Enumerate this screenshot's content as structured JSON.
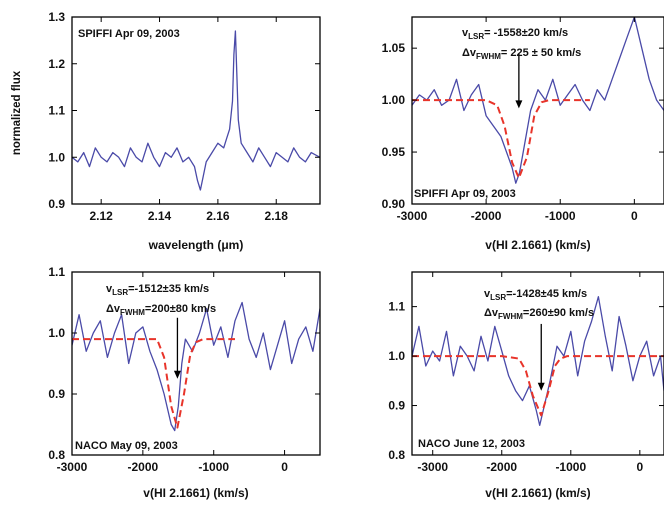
{
  "chart_data": [
    {
      "type": "line",
      "label": "SPIFFI Apr 09, 2003",
      "xlabel": "wavelength (μm)",
      "ylabel": "normalized flux",
      "xlim": [
        2.11,
        2.195
      ],
      "ylim": [
        0.9,
        1.3
      ],
      "xticks": [
        2.12,
        2.14,
        2.16,
        2.18
      ],
      "yticks": [
        0.9,
        1.0,
        1.1,
        1.2,
        1.3
      ],
      "xtick_labels": [
        "2.12",
        "2.14",
        "2.16",
        "2.18"
      ],
      "ytick_labels": [
        "0.9",
        "1.0",
        "1.1",
        "1.2",
        "1.3"
      ],
      "series": [
        {
          "color": "#4a4aa8",
          "x": [
            2.11,
            2.112,
            2.114,
            2.116,
            2.118,
            2.12,
            2.122,
            2.124,
            2.126,
            2.128,
            2.13,
            2.132,
            2.134,
            2.136,
            2.138,
            2.14,
            2.142,
            2.144,
            2.146,
            2.148,
            2.15,
            2.152,
            2.153,
            2.154,
            2.155,
            2.156,
            2.158,
            2.16,
            2.162,
            2.163,
            2.164,
            2.165,
            2.1655,
            2.166,
            2.1665,
            2.167,
            2.168,
            2.17,
            2.172,
            2.174,
            2.176,
            2.178,
            2.18,
            2.182,
            2.184,
            2.186,
            2.188,
            2.19,
            2.192,
            2.195
          ],
          "y": [
            1.0,
            0.99,
            1.01,
            0.98,
            1.02,
            1.0,
            0.99,
            1.01,
            1.0,
            0.98,
            1.02,
            1.0,
            0.99,
            1.03,
            1.0,
            0.98,
            1.01,
            1.0,
            1.02,
            0.99,
            1.0,
            0.98,
            0.95,
            0.93,
            0.96,
            0.99,
            1.01,
            1.03,
            1.02,
            1.04,
            1.06,
            1.12,
            1.22,
            1.27,
            1.18,
            1.08,
            1.03,
            1.01,
            0.99,
            1.02,
            1.0,
            0.98,
            1.01,
            1.0,
            0.99,
            1.02,
            1.0,
            0.99,
            1.01,
            1.0
          ]
        }
      ]
    },
    {
      "type": "line",
      "label": "SPIFFI Apr 09, 2003",
      "xlabel": "v(HI 2.1661) (km/s)",
      "xlim": [
        -3000,
        400
      ],
      "ylim": [
        0.9,
        1.08
      ],
      "xticks": [
        -3000,
        -2000,
        -1000,
        0
      ],
      "yticks": [
        0.9,
        0.95,
        1.0,
        1.05
      ],
      "xtick_labels": [
        "-3000",
        "-2000",
        "-1000",
        "0"
      ],
      "ytick_labels": [
        "0.90",
        "0.95",
        "1.00",
        "1.05"
      ],
      "annotations": {
        "v_lsr": {
          "prefix": "v",
          "sub": "LSR",
          "value": "= -1558±20 km/s"
        },
        "dv_fwhm": {
          "prefix": "Δv",
          "sub": "FWHM",
          "value": "= 225 ± 50 km/s"
        }
      },
      "arrow_x": -1558,
      "arrow_y": [
        1.045,
        0.992
      ],
      "series": [
        {
          "color": "#4a4aa8",
          "x": [
            -3000,
            -2900,
            -2800,
            -2700,
            -2600,
            -2500,
            -2400,
            -2300,
            -2200,
            -2100,
            -2000,
            -1900,
            -1800,
            -1700,
            -1650,
            -1600,
            -1550,
            -1500,
            -1450,
            -1400,
            -1300,
            -1200,
            -1100,
            -1000,
            -900,
            -800,
            -700,
            -600,
            -500,
            -400,
            -300,
            -200,
            -100,
            0,
            100,
            200,
            300,
            400
          ],
          "y": [
            0.995,
            1.005,
            1.0,
            1.01,
            0.995,
            1.0,
            1.02,
            0.99,
            1.005,
            1.015,
            0.985,
            0.975,
            0.965,
            0.945,
            0.935,
            0.92,
            0.93,
            0.95,
            0.97,
            0.99,
            1.01,
            1.0,
            1.02,
            0.995,
            1.005,
            1.015,
            1.0,
            0.99,
            1.01,
            1.0,
            1.02,
            1.04,
            1.06,
            1.08,
            1.05,
            1.02,
            1.0,
            0.99
          ]
        },
        {
          "color": "#e8342a",
          "dashed": true,
          "x": [
            -3000,
            -2400,
            -2000,
            -1850,
            -1750,
            -1650,
            -1558,
            -1450,
            -1350,
            -1250,
            -1150,
            -600
          ],
          "y": [
            1.0,
            1.0,
            1.0,
            0.995,
            0.975,
            0.94,
            0.925,
            0.945,
            0.985,
            0.998,
            1.0,
            1.0
          ]
        }
      ]
    },
    {
      "type": "line",
      "label": "NACO May 09, 2003",
      "xlabel": "v(HI 2.1661)  (km/s)",
      "xlim": [
        -3000,
        500
      ],
      "ylim": [
        0.8,
        1.1
      ],
      "xticks": [
        -3000,
        -2000,
        -1000,
        0
      ],
      "yticks": [
        0.8,
        0.9,
        1.0,
        1.1
      ],
      "xtick_labels": [
        "-3000",
        "-2000",
        "-1000",
        "0"
      ],
      "ytick_labels": [
        "0.8",
        "0.9",
        "1.0",
        "1.1"
      ],
      "annotations": {
        "v_lsr": {
          "prefix": "v",
          "sub": "LSR",
          "value": "=-1512±35 km/s"
        },
        "dv_fwhm": {
          "prefix": "Δv",
          "sub": "FWHM",
          "value": "=200±80 km/s"
        }
      },
      "arrow_x": -1512,
      "arrow_y": [
        1.025,
        0.925
      ],
      "series": [
        {
          "color": "#4a4aa8",
          "x": [
            -3000,
            -2900,
            -2800,
            -2700,
            -2600,
            -2500,
            -2400,
            -2300,
            -2200,
            -2100,
            -2000,
            -1900,
            -1800,
            -1700,
            -1600,
            -1550,
            -1500,
            -1450,
            -1400,
            -1300,
            -1200,
            -1100,
            -1000,
            -900,
            -800,
            -700,
            -600,
            -500,
            -400,
            -300,
            -200,
            -100,
            0,
            100,
            200,
            300,
            400,
            500
          ],
          "y": [
            0.98,
            1.03,
            0.97,
            1.0,
            1.02,
            0.96,
            1.0,
            1.03,
            0.95,
            1.0,
            1.01,
            0.97,
            0.94,
            0.9,
            0.85,
            0.84,
            0.88,
            0.95,
            0.99,
            0.97,
            1.0,
            1.04,
            0.98,
            1.01,
            0.96,
            1.02,
            1.05,
            0.99,
            0.96,
            1.0,
            0.94,
            0.98,
            1.02,
            0.95,
            0.99,
            1.01,
            0.97,
            1.04
          ]
        },
        {
          "color": "#e8342a",
          "dashed": true,
          "x": [
            -3000,
            -2200,
            -1800,
            -1700,
            -1600,
            -1512,
            -1420,
            -1330,
            -1250,
            -1150,
            -700
          ],
          "y": [
            0.99,
            0.99,
            0.99,
            0.96,
            0.88,
            0.845,
            0.9,
            0.965,
            0.985,
            0.99,
            0.99
          ]
        }
      ]
    },
    {
      "type": "line",
      "label": "NACO June 12, 2003",
      "xlabel": "v(HI 2.1661)  (km/s)",
      "xlim": [
        -3300,
        350
      ],
      "ylim": [
        0.8,
        1.17
      ],
      "xticks": [
        -3000,
        -2000,
        -1000,
        0
      ],
      "yticks": [
        0.8,
        0.9,
        1.0,
        1.1
      ],
      "xtick_labels": [
        "-3000",
        "-2000",
        "-1000",
        "0"
      ],
      "ytick_labels": [
        "0.8",
        "0.9",
        "1.0",
        "1.1"
      ],
      "annotations": {
        "v_lsr": {
          "prefix": "v",
          "sub": "LSR",
          "value": "=-1428±45 km/s"
        },
        "dv_fwhm": {
          "prefix": "Δv",
          "sub": "FWHM",
          "value": "=260±90 km/s"
        }
      },
      "arrow_x": -1428,
      "arrow_y": [
        1.065,
        0.93
      ],
      "series": [
        {
          "color": "#4a4aa8",
          "x": [
            -3300,
            -3200,
            -3100,
            -3000,
            -2900,
            -2800,
            -2700,
            -2600,
            -2500,
            -2400,
            -2300,
            -2200,
            -2100,
            -2000,
            -1900,
            -1800,
            -1700,
            -1600,
            -1500,
            -1450,
            -1400,
            -1300,
            -1200,
            -1100,
            -1000,
            -900,
            -800,
            -700,
            -600,
            -500,
            -400,
            -300,
            -200,
            -100,
            0,
            100,
            200,
            300,
            350
          ],
          "y": [
            1.0,
            1.06,
            0.98,
            1.01,
            0.99,
            1.05,
            0.96,
            1.02,
            1.0,
            0.97,
            1.04,
            0.99,
            1.06,
            1.01,
            0.96,
            0.93,
            0.91,
            0.94,
            0.89,
            0.86,
            0.89,
            0.95,
            1.02,
            1.0,
            1.05,
            0.96,
            1.03,
            1.07,
            1.12,
            1.04,
            0.97,
            1.08,
            1.02,
            0.95,
            1.0,
            1.03,
            0.96,
            1.0,
            0.93
          ]
        },
        {
          "color": "#e8342a",
          "dashed": true,
          "x": [
            -3300,
            -2000,
            -1750,
            -1650,
            -1550,
            -1428,
            -1320,
            -1230,
            -1150,
            -1050,
            350
          ],
          "y": [
            1.0,
            1.0,
            0.995,
            0.97,
            0.92,
            0.88,
            0.93,
            0.98,
            0.995,
            1.0,
            1.0
          ]
        }
      ]
    }
  ]
}
